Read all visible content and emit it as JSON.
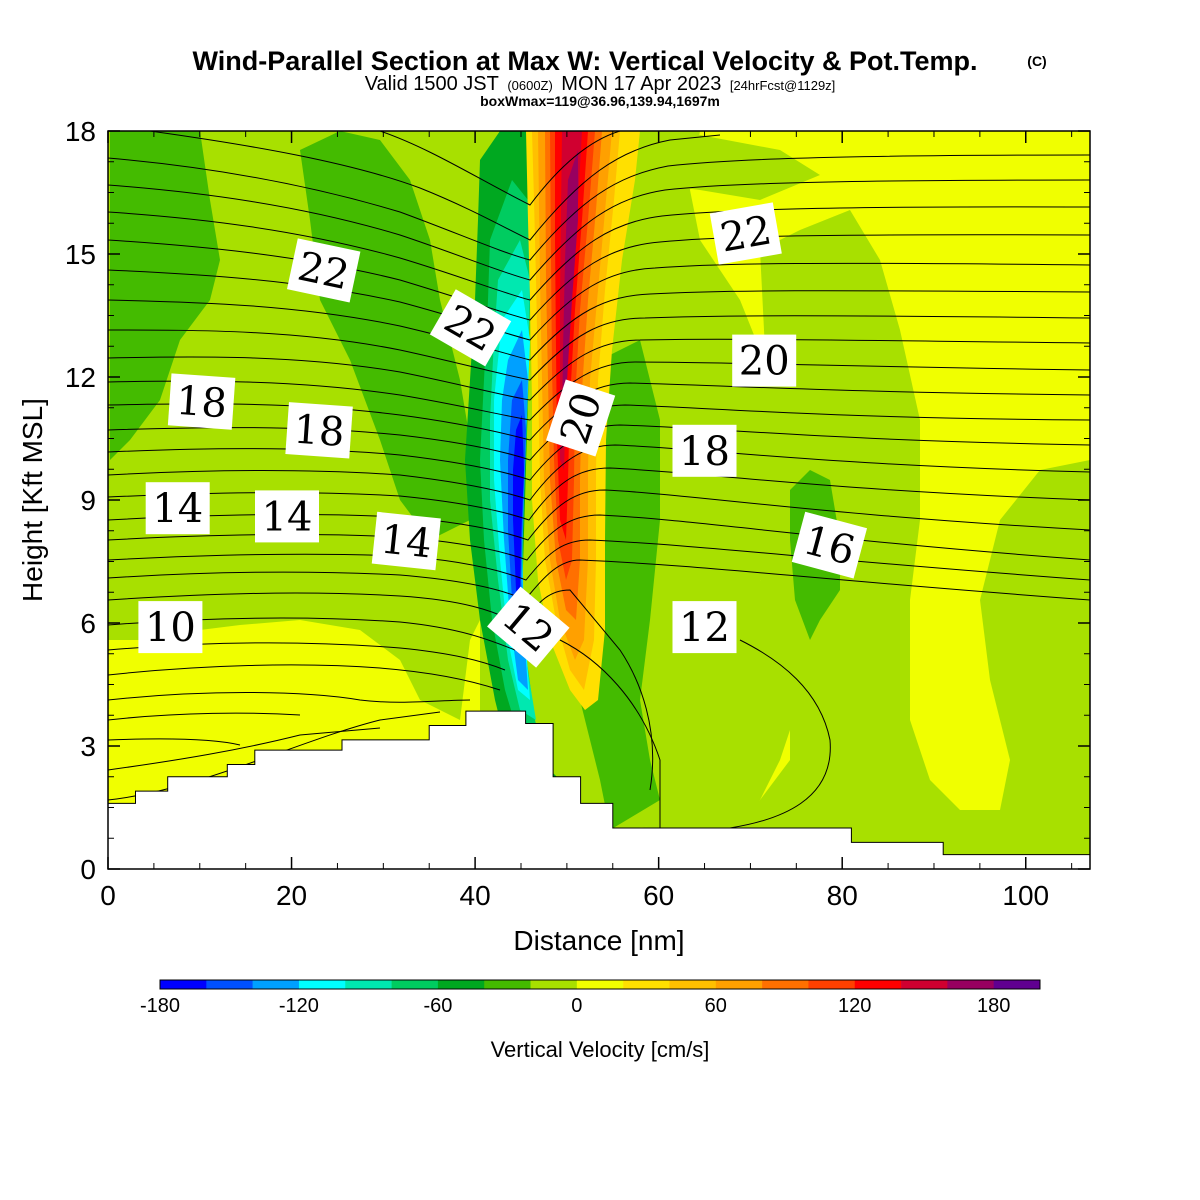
{
  "title": {
    "main": "Wind-Parallel Section at Max W: Vertical Velocity & Pot.Temp.",
    "copyright": "(C)",
    "valid_prefix": "Valid 1500 JST",
    "valid_utc": "(0600Z)",
    "valid_date": "MON 17 Apr 2023",
    "forecast": "[24hrFcst@1129z]",
    "box_info": "boxWmax=119@36.96,139.94,1697m"
  },
  "chart_data": {
    "type": "heatmap",
    "xlabel": "Distance [nm]",
    "ylabel": "Height [Kft MSL]",
    "xlim": [
      0,
      107
    ],
    "ylim": [
      0,
      18
    ],
    "x_ticks": [
      0,
      20,
      40,
      60,
      80,
      100
    ],
    "y_ticks": [
      0,
      3,
      6,
      9,
      12,
      15,
      18
    ],
    "colorbar": {
      "label": "Vertical Velocity [cm/s]",
      "range": [
        -180,
        200
      ],
      "tick_values": [
        -180,
        -120,
        -60,
        0,
        60,
        120,
        180
      ],
      "colors": [
        "#0000ff",
        "#0050ff",
        "#00a0ff",
        "#00ffff",
        "#00e8b0",
        "#00cc60",
        "#00a820",
        "#44bb00",
        "#a8e000",
        "#f0ff00",
        "#ffe000",
        "#ffc000",
        "#ffa000",
        "#ff7000",
        "#ff4000",
        "#ff0000",
        "#d00030",
        "#980060",
        "#600090"
      ]
    },
    "terrain_kft": [
      [
        0,
        1.6
      ],
      [
        3,
        1.6
      ],
      [
        3,
        1.9
      ],
      [
        6.5,
        1.9
      ],
      [
        6.5,
        2.25
      ],
      [
        13,
        2.25
      ],
      [
        13,
        2.55
      ],
      [
        16,
        2.55
      ],
      [
        16,
        2.9
      ],
      [
        25.5,
        2.9
      ],
      [
        25.5,
        3.15
      ],
      [
        35,
        3.15
      ],
      [
        35,
        3.5
      ],
      [
        39,
        3.5
      ],
      [
        39,
        3.85
      ],
      [
        45.5,
        3.85
      ],
      [
        45.5,
        3.55
      ],
      [
        48.5,
        3.55
      ],
      [
        48.5,
        2.25
      ],
      [
        51.5,
        2.25
      ],
      [
        51.5,
        1.6
      ],
      [
        55,
        1.6
      ],
      [
        55,
        1.0
      ],
      [
        81,
        1.0
      ],
      [
        81,
        0.65
      ],
      [
        91,
        0.65
      ],
      [
        91,
        0.35
      ],
      [
        107,
        0.35
      ]
    ],
    "contour_labels": [
      {
        "text": "22",
        "x": 23.5,
        "y": 14.6,
        "rotate": 12
      },
      {
        "text": "22",
        "x": 39.5,
        "y": 13.2,
        "rotate": 30
      },
      {
        "text": "22",
        "x": 69.5,
        "y": 15.5,
        "rotate": -10
      },
      {
        "text": "20",
        "x": 51.5,
        "y": 11.0,
        "rotate": -72
      },
      {
        "text": "20",
        "x": 71.5,
        "y": 12.4,
        "rotate": 0
      },
      {
        "text": "18",
        "x": 10.2,
        "y": 11.4,
        "rotate": 4
      },
      {
        "text": "18",
        "x": 23.0,
        "y": 10.7,
        "rotate": 4
      },
      {
        "text": "18",
        "x": 65.0,
        "y": 10.2,
        "rotate": 0
      },
      {
        "text": "14",
        "x": 7.6,
        "y": 8.8,
        "rotate": 0
      },
      {
        "text": "14",
        "x": 19.5,
        "y": 8.6,
        "rotate": 0
      },
      {
        "text": "14",
        "x": 32.5,
        "y": 8.0,
        "rotate": 6
      },
      {
        "text": "16",
        "x": 78.6,
        "y": 7.9,
        "rotate": 15
      },
      {
        "text": "10",
        "x": 6.8,
        "y": 5.9,
        "rotate": 0
      },
      {
        "text": "12",
        "x": 45.8,
        "y": 5.9,
        "rotate": 40
      },
      {
        "text": "12",
        "x": 65.0,
        "y": 5.9,
        "rotate": 0
      }
    ]
  }
}
